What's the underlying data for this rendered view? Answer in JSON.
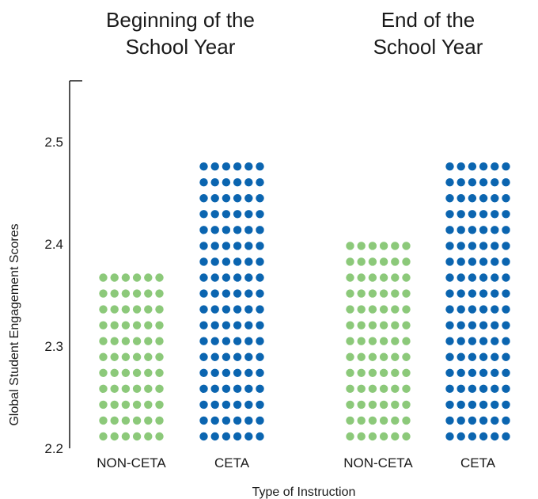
{
  "chart_data": {
    "type": "bar",
    "style": "dot-matrix bars",
    "panels": [
      {
        "title_line1": "Beginning of the",
        "title_line2": "School Year",
        "categories": [
          "NON-CETA",
          "CETA"
        ],
        "values": [
          2.376,
          2.485
        ]
      },
      {
        "title_line1": "End of the",
        "title_line2": "School Year",
        "categories": [
          "NON-CETA",
          "CETA"
        ],
        "values": [
          2.398,
          2.485
        ]
      }
    ],
    "ylabel": "Global Student Engagement Scores",
    "xlabel": "Type of Instruction",
    "ylim": [
      2.2,
      2.56
    ],
    "yticks": [
      "2.2",
      "2.3",
      "2.4",
      "2.5"
    ],
    "grid": false,
    "colors": {
      "NON-CETA": "#8cc97a",
      "CETA": "#0b65b0",
      "axis": "#1a1a1a"
    }
  }
}
